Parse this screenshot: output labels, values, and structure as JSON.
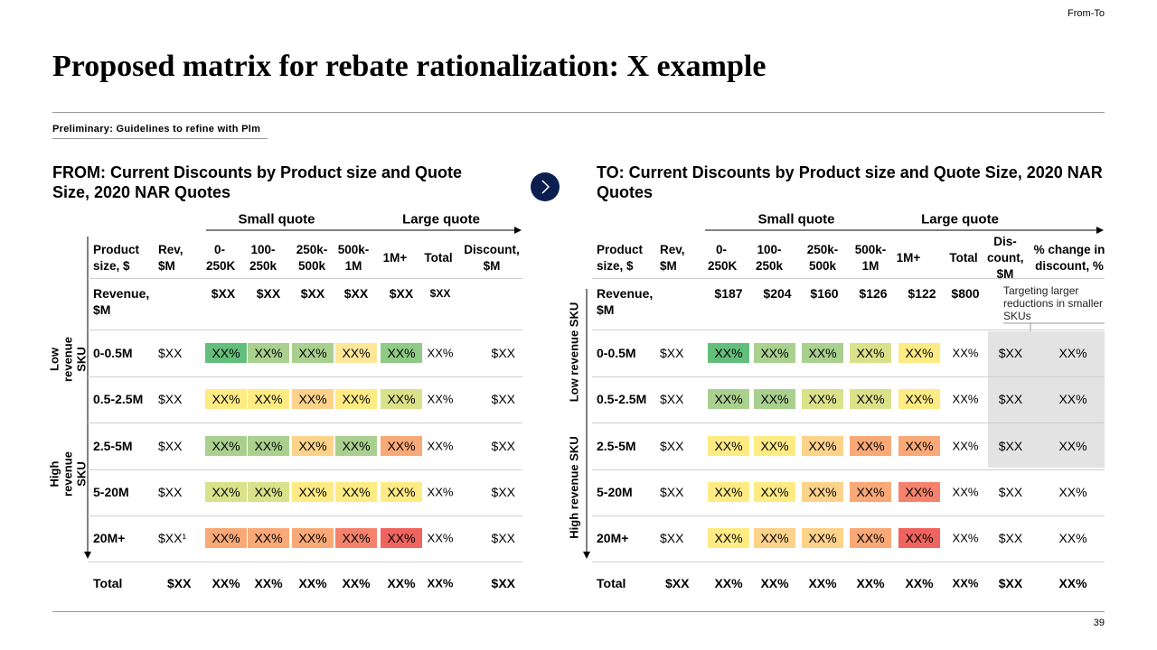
{
  "tag": "From-To",
  "title": "Proposed matrix for rebate rationalization: X example",
  "subtitle": "Preliminary: Guidelines to refine with Plm",
  "page_number": "39",
  "panels": [
    {
      "title": "FROM: Current Discounts by Product size and Quote Size, 2020 NAR Quotes",
      "quote_labels": [
        "Small quote",
        "Large quote"
      ],
      "side_labels": [
        "Low revenue SKU",
        "High revenue SKU"
      ],
      "headers": [
        "Product size, $",
        "Rev, $M",
        "0-250K",
        "100-250k",
        "250k-500k",
        "500k-1M",
        "1M+",
        "Total",
        "Discount, $M"
      ],
      "revenue_row": {
        "label": "Revenue, $M",
        "values": [
          "$XX",
          "$XX",
          "$XX",
          "$XX",
          "$XX",
          "$XX"
        ]
      },
      "rows": [
        {
          "label": "0-0.5M",
          "rev": "$XX",
          "cells": [
            "XX%",
            "XX%",
            "XX%",
            "XX%",
            "XX%"
          ],
          "colors": [
            "#63be7b",
            "#a9d08e",
            "#a9d08e",
            "#ffe699",
            "#8fcb84"
          ],
          "total": "XX%",
          "discount": "$XX"
        },
        {
          "label": "0.5-2.5M",
          "rev": "$XX",
          "cells": [
            "XX%",
            "XX%",
            "XX%",
            "XX%",
            "XX%"
          ],
          "colors": [
            "#ffeb84",
            "#ffeb84",
            "#fdd28a",
            "#ffeb84",
            "#d9e28a"
          ],
          "total": "XX%",
          "discount": "$XX"
        },
        {
          "label": "2.5-5M",
          "rev": "$XX",
          "cells": [
            "XX%",
            "XX%",
            "XX%",
            "XX%",
            "XX%"
          ],
          "colors": [
            "#a9d08e",
            "#a9d08e",
            "#fdd28a",
            "#a9d08e",
            "#f8a977"
          ],
          "total": "XX%",
          "discount": "$XX"
        },
        {
          "label": "5-20M",
          "rev": "$XX",
          "cells": [
            "XX%",
            "XX%",
            "XX%",
            "XX%",
            "XX%"
          ],
          "colors": [
            "#d9e28a",
            "#d9e28a",
            "#ffeb84",
            "#ffeb84",
            "#ffeb84"
          ],
          "total": "XX%",
          "discount": "$XX"
        },
        {
          "label": "20M+",
          "rev": "$XX¹",
          "cells": [
            "XX%",
            "XX%",
            "XX%",
            "XX%",
            "XX%"
          ],
          "colors": [
            "#f8a977",
            "#f8a977",
            "#f8a977",
            "#f4826c",
            "#f0645f"
          ],
          "total": "XX%",
          "discount": "$XX"
        }
      ],
      "total_row": {
        "label": "Total",
        "rev": "$XX",
        "cells": [
          "XX%",
          "XX%",
          "XX%",
          "XX%",
          "XX%",
          "XX%"
        ],
        "discount": "$XX"
      }
    },
    {
      "title": "TO: Current Discounts by Product size and Quote Size, 2020 NAR Quotes",
      "quote_labels": [
        "Small quote",
        "Large quote"
      ],
      "side_labels": [
        "Low revenue SKU",
        "High revenue SKU"
      ],
      "headers": [
        "Product size, $",
        "Rev, $M",
        "0-250K",
        "100-250k",
        "250k-500k",
        "500k-1M",
        "1M+",
        "Total",
        "Dis-count, $M",
        "% change in discount, %"
      ],
      "revenue_row": {
        "label": "Revenue, $M",
        "values": [
          "$187",
          "$204",
          "$160",
          "$126",
          "$122",
          "$800"
        ]
      },
      "annotation": "Targeting larger reductions in smaller SKUs",
      "rows": [
        {
          "label": "0-0.5M",
          "rev": "$XX",
          "cells": [
            "XX%",
            "XX%",
            "XX%",
            "XX%",
            "XX%"
          ],
          "colors": [
            "#63be7b",
            "#a9d08e",
            "#a9d08e",
            "#d9e28a",
            "#ffeb84"
          ],
          "total": "XX%",
          "discount": "$XX",
          "change": "XX%"
        },
        {
          "label": "0.5-2.5M",
          "rev": "$XX",
          "cells": [
            "XX%",
            "XX%",
            "XX%",
            "XX%",
            "XX%"
          ],
          "colors": [
            "#a9d08e",
            "#a9d08e",
            "#d9e28a",
            "#d9e28a",
            "#ffeb84"
          ],
          "total": "XX%",
          "discount": "$XX",
          "change": "XX%"
        },
        {
          "label": "2.5-5M",
          "rev": "$XX",
          "cells": [
            "XX%",
            "XX%",
            "XX%",
            "XX%",
            "XX%"
          ],
          "colors": [
            "#ffeb84",
            "#ffeb84",
            "#fdd28a",
            "#f8a977",
            "#f8a977"
          ],
          "total": "XX%",
          "discount": "$XX",
          "change": "XX%"
        },
        {
          "label": "5-20M",
          "rev": "$XX",
          "cells": [
            "XX%",
            "XX%",
            "XX%",
            "XX%",
            "XX%"
          ],
          "colors": [
            "#ffeb84",
            "#ffeb84",
            "#fdd28a",
            "#f8a977",
            "#f4826c"
          ],
          "total": "XX%",
          "discount": "$XX",
          "change": "XX%"
        },
        {
          "label": "20M+",
          "rev": "$XX",
          "cells": [
            "XX%",
            "XX%",
            "XX%",
            "XX%",
            "XX%"
          ],
          "colors": [
            "#ffeb84",
            "#fdd28a",
            "#fdd28a",
            "#f8a977",
            "#f0645f"
          ],
          "total": "XX%",
          "discount": "$XX",
          "change": "XX%"
        }
      ],
      "total_row": {
        "label": "Total",
        "rev": "$XX",
        "cells": [
          "XX%",
          "XX%",
          "XX%",
          "XX%",
          "XX%",
          "XX%"
        ],
        "discount": "$XX",
        "change": "XX%"
      }
    }
  ]
}
